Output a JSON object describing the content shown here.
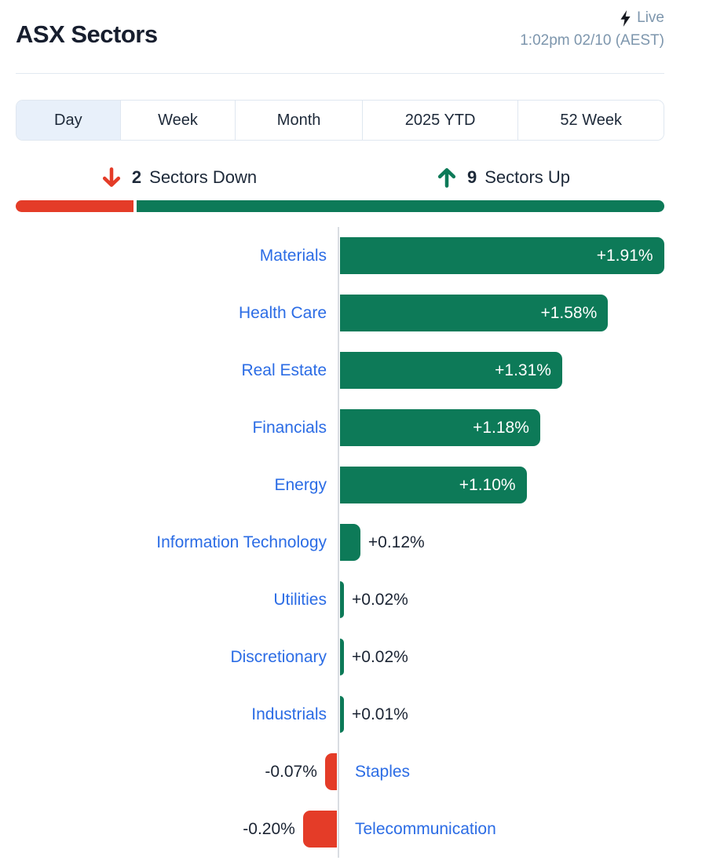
{
  "header": {
    "title": "ASX Sectors",
    "live_label": "Live",
    "timestamp": "1:02pm 02/10 (AEST)"
  },
  "icons": {
    "lightning_bolt": "lightning-bolt-icon",
    "down_arrow": "arrow-down-icon",
    "up_arrow": "arrow-up-icon"
  },
  "tabs": [
    {
      "label": "Day",
      "selected": true
    },
    {
      "label": "Week",
      "selected": false
    },
    {
      "label": "Month",
      "selected": false
    },
    {
      "label": "2025 YTD",
      "selected": false
    },
    {
      "label": "52 Week",
      "selected": false
    }
  ],
  "summary": {
    "down_count": "2",
    "down_label": "Sectors Down",
    "up_count": "9",
    "up_label": "Sectors Up"
  },
  "colors": {
    "positive_green": "#0d7a58",
    "negative_red": "#e43c28",
    "label_blue": "#2b6ce5",
    "title_navy": "#171e2e",
    "timestamp_gray": "#7d96ad",
    "axis_gray": "#d9dde2",
    "tab_selected_bg": "#e8f0fa"
  },
  "chart_data": {
    "type": "bar",
    "orientation": "horizontal",
    "unit": "%",
    "title": "ASX sector performance (Day)",
    "categories": [
      "Materials",
      "Health Care",
      "Real Estate",
      "Financials",
      "Energy",
      "Information Technology",
      "Utilities",
      "Discretionary",
      "Industrials",
      "Staples",
      "Telecommunication"
    ],
    "values": [
      1.91,
      1.58,
      1.31,
      1.18,
      1.1,
      0.12,
      0.02,
      0.02,
      0.01,
      -0.07,
      -0.2
    ],
    "labels": [
      "+1.91%",
      "+1.58%",
      "+1.31%",
      "+1.18%",
      "+1.10%",
      "+0.12%",
      "+0.02%",
      "+0.02%",
      "+0.01%",
      "-0.07%",
      "-0.20%"
    ],
    "xlim": [
      -0.25,
      1.95
    ],
    "grid": false,
    "legend": false,
    "baseline_axis": "vertical zero line"
  }
}
